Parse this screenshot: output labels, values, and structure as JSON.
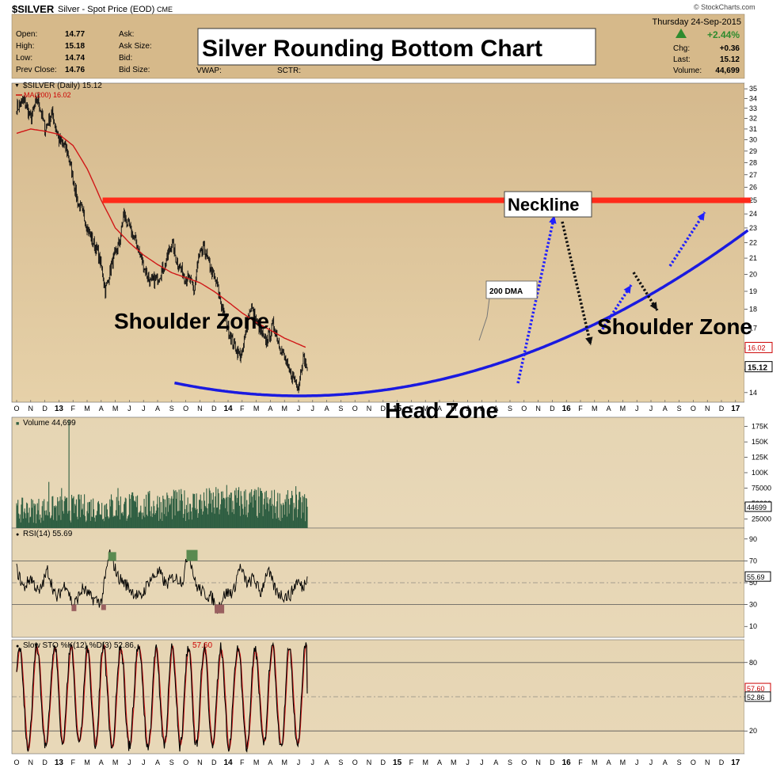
{
  "header": {
    "symbol": "$SILVER",
    "description": "Silver - Spot Price (EOD)",
    "exchange": "CME",
    "watermark": "© StockCharts.com",
    "date": "Thursday  24-Sep-2015",
    "pct_change": "+2.44%",
    "left_stats": [
      {
        "label": "Open:",
        "value": "14.77"
      },
      {
        "label": "High:",
        "value": "15.18"
      },
      {
        "label": "Low:",
        "value": "14.74"
      },
      {
        "label": "Prev Close:",
        "value": "14.76"
      }
    ],
    "mid_stats": [
      {
        "label": "Ask:"
      },
      {
        "label": "Ask Size:"
      },
      {
        "label": "Bid:"
      },
      {
        "label": "Bid Size:"
      }
    ],
    "extra_labels": [
      "VWAP:",
      "SCTR:"
    ],
    "right_stats": [
      {
        "label": "Chg:",
        "value": "+0.36"
      },
      {
        "label": "Last:",
        "value": "15.12"
      },
      {
        "label": "Volume:",
        "value": "44,699"
      }
    ],
    "colors": {
      "up": "#2e8b2e",
      "accent": "#b0d8a0"
    }
  },
  "chart_data": [
    {
      "type": "line",
      "title": "Silver Rounding Bottom Chart",
      "legend": [
        {
          "text": "$SILVER (Daily) 15.12",
          "color": "#000000"
        },
        {
          "text": "MA(200) 16.02",
          "color": "#cc0000"
        }
      ],
      "x_tick_labels": [
        "O",
        "N",
        "D",
        "13",
        "F",
        "M",
        "A",
        "M",
        "J",
        "J",
        "A",
        "S",
        "O",
        "N",
        "D",
        "14",
        "F",
        "M",
        "A",
        "M",
        "J",
        "J",
        "A",
        "S",
        "O",
        "N",
        "D",
        "15",
        "F",
        "M",
        "A",
        "M",
        "J",
        "J",
        "A",
        "S",
        "O",
        "N",
        "D",
        "16",
        "F",
        "M",
        "A",
        "M",
        "J",
        "J",
        "A",
        "S",
        "O",
        "N",
        "D",
        "17"
      ],
      "y_ticks": [
        14,
        15,
        16,
        17,
        18,
        19,
        20,
        21,
        22,
        23,
        24,
        25,
        26,
        27,
        28,
        29,
        30,
        31,
        32,
        33,
        34,
        35
      ],
      "ylim": [
        13.6,
        35.6
      ],
      "log_scale": true,
      "last_price": "15.12",
      "ma_value": "16.02",
      "price_anchors": [
        [
          0,
          33.0
        ],
        [
          0.5,
          33.8
        ],
        [
          1.0,
          32.0
        ],
        [
          1.5,
          34.0
        ],
        [
          2.0,
          31.0
        ],
        [
          2.5,
          32.5
        ],
        [
          3.0,
          30.0
        ],
        [
          3.6,
          29.0
        ],
        [
          4.3,
          25.0
        ],
        [
          4.7,
          24.0
        ],
        [
          5.2,
          22.5
        ],
        [
          5.7,
          21.5
        ],
        [
          6.0,
          20.5
        ],
        [
          6.3,
          19.0
        ],
        [
          6.7,
          20.5
        ],
        [
          7.3,
          22.0
        ],
        [
          7.6,
          24.0
        ],
        [
          8.0,
          23.0
        ],
        [
          8.5,
          22.0
        ],
        [
          9.0,
          20.5
        ],
        [
          9.5,
          19.5
        ],
        [
          10.0,
          19.8
        ],
        [
          10.5,
          20.5
        ],
        [
          11.0,
          22.0
        ],
        [
          11.3,
          21.0
        ],
        [
          11.8,
          20.0
        ],
        [
          12.3,
          19.6
        ],
        [
          12.6,
          19.0
        ],
        [
          12.9,
          21.0
        ],
        [
          13.3,
          21.6
        ],
        [
          13.7,
          20.5
        ],
        [
          14.2,
          19.4
        ],
        [
          14.6,
          18.0
        ],
        [
          15.0,
          17.0
        ],
        [
          15.4,
          16.2
        ],
        [
          15.7,
          15.8
        ],
        [
          16.0,
          15.6
        ],
        [
          16.3,
          17.0
        ],
        [
          16.6,
          18.2
        ],
        [
          16.9,
          17.6
        ],
        [
          17.3,
          16.8
        ],
        [
          17.6,
          16.3
        ],
        [
          17.9,
          16.6
        ],
        [
          18.2,
          17.2
        ],
        [
          18.6,
          16.3
        ],
        [
          19.0,
          15.5
        ],
        [
          19.4,
          14.8
        ],
        [
          19.7,
          14.6
        ],
        [
          20.0,
          14.3
        ],
        [
          20.3,
          15.6
        ],
        [
          20.6,
          15.12
        ]
      ],
      "ma_anchors": [
        [
          0,
          30.6
        ],
        [
          1.0,
          31.0
        ],
        [
          2.0,
          30.8
        ],
        [
          3.0,
          30.5
        ],
        [
          4.0,
          29.5
        ],
        [
          5.0,
          27.5
        ],
        [
          6.0,
          25.0
        ],
        [
          7.0,
          23.0
        ],
        [
          8.0,
          22.0
        ],
        [
          9.0,
          21.2
        ],
        [
          10.0,
          20.6
        ],
        [
          11.0,
          20.1
        ],
        [
          12.0,
          19.8
        ],
        [
          13.0,
          19.5
        ],
        [
          14.0,
          19.0
        ],
        [
          15.0,
          18.4
        ],
        [
          16.0,
          17.8
        ],
        [
          17.0,
          17.3
        ],
        [
          18.0,
          16.9
        ],
        [
          19.0,
          16.5
        ],
        [
          20.6,
          16.02
        ]
      ],
      "neckline_level": 25,
      "annotations": [
        "Neckline",
        "Shoulder Zone",
        "Shoulder Zone",
        "Head Zone",
        "200 DMA"
      ]
    },
    {
      "type": "bar",
      "legend": [
        {
          "text": "Volume 44,699",
          "color": "#000000"
        }
      ],
      "y_tick_labels": [
        "175K",
        "150K",
        "125K",
        "100K",
        "75000",
        "50000",
        "25000"
      ],
      "y_tick_values": [
        175000,
        150000,
        125000,
        100000,
        75000,
        50000,
        25000
      ],
      "ylim": [
        10000,
        190000
      ],
      "last_volume": "44699",
      "volume_anchors": [
        [
          0,
          38000
        ],
        [
          4,
          42000
        ],
        [
          8,
          45000
        ],
        [
          12,
          48000
        ],
        [
          16,
          52000
        ],
        [
          20,
          45000
        ],
        [
          20.6,
          44699
        ]
      ],
      "volume_spikes": [
        [
          3.7,
          185000
        ],
        [
          2.3,
          85000
        ],
        [
          3.2,
          75000
        ],
        [
          7.2,
          75000
        ],
        [
          11.2,
          70000
        ],
        [
          14.9,
          80000
        ],
        [
          19.8,
          78000
        ]
      ]
    },
    {
      "type": "line",
      "legend": [
        {
          "text": "RSI(14) 55.69",
          "color": "#000000"
        }
      ],
      "y_ticks": [
        10,
        30,
        50,
        70,
        90
      ],
      "ylim": [
        0,
        100
      ],
      "overbought": 70,
      "oversold": 30,
      "last_value": "55.69",
      "rsi_anchors": [
        [
          0,
          62
        ],
        [
          0.5,
          45
        ],
        [
          1.0,
          55
        ],
        [
          1.6,
          40
        ],
        [
          2.2,
          62
        ],
        [
          2.8,
          35
        ],
        [
          3.5,
          50
        ],
        [
          4.0,
          28
        ],
        [
          4.7,
          45
        ],
        [
          5.3,
          36
        ],
        [
          6.0,
          32
        ],
        [
          6.6,
          78
        ],
        [
          7.2,
          55
        ],
        [
          7.8,
          48
        ],
        [
          8.2,
          42
        ],
        [
          8.8,
          36
        ],
        [
          9.4,
          52
        ],
        [
          10.1,
          60
        ],
        [
          10.6,
          48
        ],
        [
          11.1,
          55
        ],
        [
          11.8,
          52
        ],
        [
          12.2,
          80
        ],
        [
          12.7,
          48
        ],
        [
          13.3,
          40
        ],
        [
          13.9,
          36
        ],
        [
          14.2,
          26
        ],
        [
          14.8,
          40
        ],
        [
          15.4,
          42
        ],
        [
          15.8,
          65
        ],
        [
          16.4,
          48
        ],
        [
          16.8,
          55
        ],
        [
          17.3,
          40
        ],
        [
          17.8,
          62
        ],
        [
          18.4,
          42
        ],
        [
          18.9,
          38
        ],
        [
          19.4,
          38
        ],
        [
          19.9,
          52
        ],
        [
          20.3,
          45
        ],
        [
          20.6,
          55.69
        ]
      ]
    },
    {
      "type": "line",
      "legend": [
        {
          "text": "Slow STO %K(12) %D(3) 52.86, ",
          "color": "#000000"
        },
        {
          "text": "57.60",
          "color": "#cc0000"
        }
      ],
      "y_ticks": [
        20,
        50,
        80
      ],
      "ylim": [
        0,
        100
      ],
      "last_k": "52.86",
      "last_d": "57.60",
      "period": 1.2
    }
  ]
}
